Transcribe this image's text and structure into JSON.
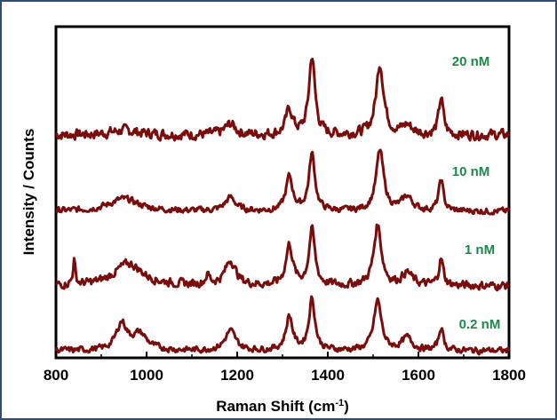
{
  "chart_data": {
    "type": "line",
    "title": "",
    "xlabel": "Raman Shift (cm",
    "xlabel_sup": "-1",
    "xlabel_end": ")",
    "ylabel": "Intensity / Counts",
    "xlim": [
      800,
      1800
    ],
    "xticks": [
      "800",
      "1000",
      "1200",
      "1400",
      "1600",
      "1800"
    ],
    "grid": false,
    "legend": "none",
    "line_color": "#7a0c0c",
    "label_color": "#1a8a4a",
    "series": [
      {
        "name": "20 nM",
        "peaks": [
          [
            950,
            5,
            40
          ],
          [
            1185,
            12,
            14
          ],
          [
            1315,
            28,
            9
          ],
          [
            1365,
            88,
            8
          ],
          [
            1515,
            80,
            10
          ],
          [
            1575,
            10,
            14
          ],
          [
            1650,
            42,
            6
          ]
        ],
        "noise": 5
      },
      {
        "name": "10 nM",
        "peaks": [
          [
            950,
            14,
            40
          ],
          [
            1185,
            15,
            14
          ],
          [
            1315,
            38,
            9
          ],
          [
            1365,
            64,
            8
          ],
          [
            1515,
            68,
            10
          ],
          [
            1575,
            16,
            14
          ],
          [
            1650,
            36,
            6
          ]
        ],
        "noise": 3
      },
      {
        "name": "1 nM",
        "peaks": [
          [
            840,
            28,
            3
          ],
          [
            960,
            25,
            38
          ],
          [
            1135,
            10,
            6
          ],
          [
            1185,
            28,
            14
          ],
          [
            1315,
            45,
            9
          ],
          [
            1365,
            62,
            8
          ],
          [
            1510,
            68,
            10
          ],
          [
            1575,
            14,
            14
          ],
          [
            1650,
            30,
            6
          ]
        ],
        "noise": 4
      },
      {
        "name": "0.2 nM",
        "peaks": [
          [
            945,
            30,
            14
          ],
          [
            985,
            18,
            20
          ],
          [
            1185,
            22,
            14
          ],
          [
            1315,
            38,
            9
          ],
          [
            1365,
            58,
            8
          ],
          [
            1510,
            56,
            10
          ],
          [
            1575,
            14,
            14
          ],
          [
            1650,
            26,
            6
          ]
        ],
        "noise": 3
      }
    ]
  }
}
